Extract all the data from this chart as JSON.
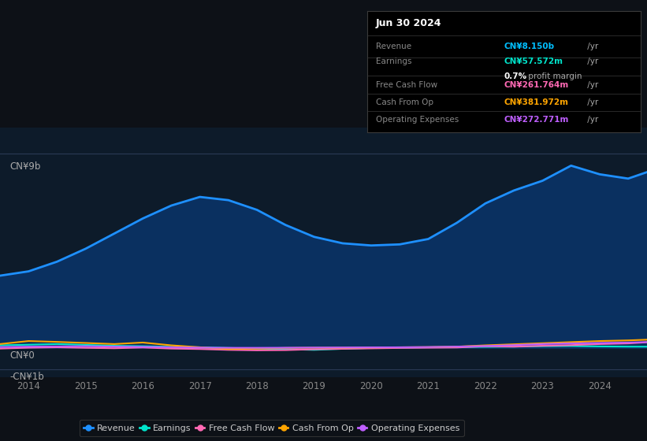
{
  "bg_color": "#0d1117",
  "plot_bg_color": "#0d1b2a",
  "title_box": {
    "date": "Jun 30 2024",
    "rows": [
      {
        "label": "Revenue",
        "value": "CN¥8.150b",
        "suffix": " /yr",
        "color": "#00bfff"
      },
      {
        "label": "Earnings",
        "value": "CN¥57.572m",
        "suffix": " /yr",
        "color": "#00e5cc"
      },
      {
        "label": "",
        "value": "0.7%",
        "suffix": " profit margin",
        "color": "#ffffff"
      },
      {
        "label": "Free Cash Flow",
        "value": "CN¥261.764m",
        "suffix": " /yr",
        "color": "#ff69b4"
      },
      {
        "label": "Cash From Op",
        "value": "CN¥381.972m",
        "suffix": " /yr",
        "color": "#ffa500"
      },
      {
        "label": "Operating Expenses",
        "value": "CN¥272.771m",
        "suffix": " /yr",
        "color": "#bf5fff"
      }
    ]
  },
  "ylabel_top": "CN¥9b",
  "ylabel_zero": "CN¥0",
  "ylabel_neg": "-CN¥1b",
  "xlim": [
    2013.5,
    2024.83
  ],
  "ylim": [
    -1350000000.0,
    10200000000.0
  ],
  "ytick_vals": [
    9000000000.0,
    0,
    -1000000000.0
  ],
  "ytick_labels": [
    "CN¥9b",
    "CN¥0",
    "-CN¥1b"
  ],
  "xticks": [
    2014,
    2015,
    2016,
    2017,
    2018,
    2019,
    2020,
    2021,
    2022,
    2023,
    2024
  ],
  "revenue": {
    "years": [
      2013.5,
      2014.0,
      2014.5,
      2015.0,
      2015.5,
      2016.0,
      2016.5,
      2017.0,
      2017.5,
      2018.0,
      2018.5,
      2019.0,
      2019.5,
      2020.0,
      2020.5,
      2021.0,
      2021.5,
      2022.0,
      2022.5,
      2023.0,
      2023.5,
      2024.0,
      2024.5,
      2024.83
    ],
    "values": [
      3350000000.0,
      3550000000.0,
      4000000000.0,
      4600000000.0,
      5300000000.0,
      6000000000.0,
      6600000000.0,
      7000000000.0,
      6850000000.0,
      6400000000.0,
      5700000000.0,
      5150000000.0,
      4850000000.0,
      4750000000.0,
      4800000000.0,
      5050000000.0,
      5800000000.0,
      6700000000.0,
      7300000000.0,
      7750000000.0,
      8450000000.0,
      8050000000.0,
      7850000000.0,
      8150000000.0
    ],
    "color": "#1e90ff",
    "fill_color": "#0a3060",
    "linewidth": 2.0
  },
  "earnings": {
    "years": [
      2013.5,
      2014.0,
      2014.5,
      2015.0,
      2015.5,
      2016.0,
      2016.5,
      2017.0,
      2017.5,
      2018.0,
      2018.5,
      2019.0,
      2019.5,
      2020.0,
      2020.5,
      2021.0,
      2021.5,
      2022.0,
      2022.5,
      2023.0,
      2023.5,
      2024.0,
      2024.5,
      2024.83
    ],
    "values": [
      120000000.0,
      150000000.0,
      180000000.0,
      140000000.0,
      100000000.0,
      80000000.0,
      50000000.0,
      30000000.0,
      0.0,
      -30000000.0,
      -60000000.0,
      -90000000.0,
      -40000000.0,
      0.0,
      10000000.0,
      30000000.0,
      40000000.0,
      50000000.0,
      60000000.0,
      80000000.0,
      90000000.0,
      70000000.0,
      60000000.0,
      57600000.0
    ],
    "color": "#00e5cc",
    "linewidth": 1.5
  },
  "free_cash_flow": {
    "years": [
      2013.5,
      2014.0,
      2014.5,
      2015.0,
      2015.5,
      2016.0,
      2016.5,
      2017.0,
      2017.5,
      2018.0,
      2018.5,
      2019.0,
      2019.5,
      2020.0,
      2020.5,
      2021.0,
      2021.5,
      2022.0,
      2022.5,
      2023.0,
      2023.5,
      2024.0,
      2024.5,
      2024.83
    ],
    "values": [
      -30000000.0,
      10000000.0,
      30000000.0,
      5000000.0,
      -15000000.0,
      20000000.0,
      -30000000.0,
      -50000000.0,
      -90000000.0,
      -110000000.0,
      -100000000.0,
      -60000000.0,
      -40000000.0,
      -20000000.0,
      0.0,
      10000000.0,
      20000000.0,
      80000000.0,
      60000000.0,
      100000000.0,
      130000000.0,
      180000000.0,
      210000000.0,
      261800000.0
    ],
    "color": "#ff69b4",
    "linewidth": 1.5
  },
  "cash_from_op": {
    "years": [
      2013.5,
      2014.0,
      2014.5,
      2015.0,
      2015.5,
      2016.0,
      2016.5,
      2017.0,
      2017.5,
      2018.0,
      2018.5,
      2019.0,
      2019.5,
      2020.0,
      2020.5,
      2021.0,
      2021.5,
      2022.0,
      2022.5,
      2023.0,
      2023.5,
      2024.0,
      2024.5,
      2024.83
    ],
    "values": [
      180000000.0,
      320000000.0,
      280000000.0,
      230000000.0,
      180000000.0,
      250000000.0,
      120000000.0,
      30000000.0,
      -50000000.0,
      -30000000.0,
      0.0,
      10000000.0,
      10000000.0,
      20000000.0,
      30000000.0,
      40000000.0,
      60000000.0,
      120000000.0,
      170000000.0,
      220000000.0,
      270000000.0,
      320000000.0,
      350000000.0,
      382000000.0
    ],
    "color": "#ffa500",
    "linewidth": 1.5
  },
  "operating_expenses": {
    "years": [
      2013.5,
      2014.0,
      2014.5,
      2015.0,
      2015.5,
      2016.0,
      2016.5,
      2017.0,
      2017.5,
      2018.0,
      2018.5,
      2019.0,
      2019.5,
      2020.0,
      2020.5,
      2021.0,
      2021.5,
      2022.0,
      2022.5,
      2023.0,
      2023.5,
      2024.0,
      2024.5,
      2024.83
    ],
    "values": [
      40000000.0,
      60000000.0,
      70000000.0,
      80000000.0,
      60000000.0,
      50000000.0,
      30000000.0,
      15000000.0,
      5000000.0,
      5000000.0,
      10000000.0,
      15000000.0,
      20000000.0,
      25000000.0,
      30000000.0,
      40000000.0,
      60000000.0,
      90000000.0,
      130000000.0,
      180000000.0,
      210000000.0,
      230000000.0,
      250000000.0,
      272800000.0
    ],
    "color": "#bf5fff",
    "linewidth": 1.5
  },
  "legend": [
    {
      "label": "Revenue",
      "color": "#1e90ff"
    },
    {
      "label": "Earnings",
      "color": "#00e5cc"
    },
    {
      "label": "Free Cash Flow",
      "color": "#ff69b4"
    },
    {
      "label": "Cash From Op",
      "color": "#ffa500"
    },
    {
      "label": "Operating Expenses",
      "color": "#bf5fff"
    }
  ]
}
